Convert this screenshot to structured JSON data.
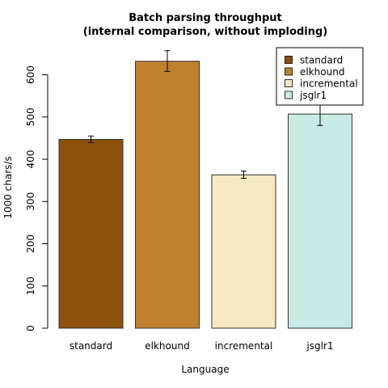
{
  "chart_data": {
    "type": "bar",
    "title": "Batch parsing throughput",
    "subtitle": "(internal comparison, without imploding)",
    "xlabel": "Language",
    "ylabel": "1000 chars/s",
    "ylim": [
      0,
      650
    ],
    "yticks": [
      0,
      100,
      200,
      300,
      400,
      500,
      600
    ],
    "categories": [
      "standard",
      "elkhound",
      "incremental",
      "jsglr1"
    ],
    "values": [
      447,
      632,
      363,
      507
    ],
    "error_low": [
      440,
      608,
      355,
      480
    ],
    "error_high": [
      455,
      657,
      372,
      537
    ],
    "colors": [
      "#8C510A",
      "#BF812D",
      "#F6E8C3",
      "#C7EAE5"
    ],
    "legend": {
      "placement": "top-right",
      "entries": [
        "standard",
        "elkhound",
        "incremental",
        "jsglr1"
      ]
    },
    "grid": false
  }
}
